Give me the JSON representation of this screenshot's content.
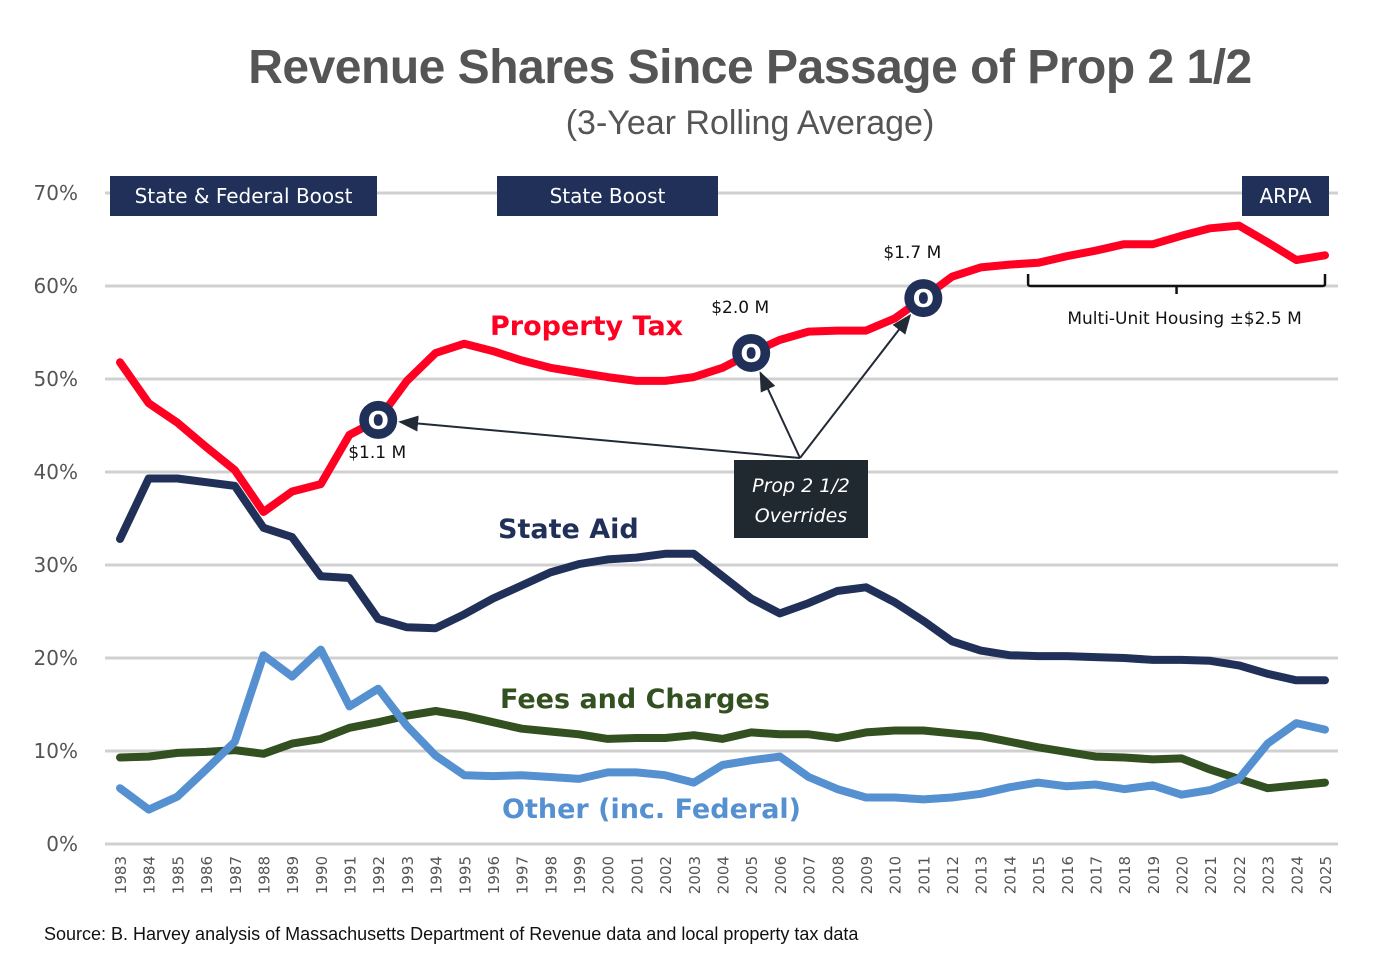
{
  "chart_data": {
    "type": "line",
    "title": "Revenue Shares Since Passage of Prop 2 1/2",
    "subtitle": "(3-Year Rolling Average)",
    "xlabel": "",
    "ylabel": "",
    "ylim": [
      0,
      70
    ],
    "yticks": [
      "0%",
      "10%",
      "20%",
      "30%",
      "40%",
      "50%",
      "60%",
      "70%"
    ],
    "grid": true,
    "x": [
      "1983",
      "1984",
      "1985",
      "1986",
      "1987",
      "1988",
      "1989",
      "1990",
      "1991",
      "1992",
      "1993",
      "1994",
      "1995",
      "1996",
      "1997",
      "1998",
      "1999",
      "2000",
      "2001",
      "2002",
      "2003",
      "2004",
      "2005",
      "2006",
      "2007",
      "2008",
      "2009",
      "2010",
      "2011",
      "2012",
      "2013",
      "2014",
      "2015",
      "2016",
      "2017",
      "2018",
      "2019",
      "2020",
      "2021",
      "2022",
      "2023",
      "2024",
      "2025"
    ],
    "series": [
      {
        "name": "Property Tax",
        "color": "#ff0022",
        "values": [
          51.8,
          47.4,
          45.3,
          42.7,
          40.2,
          35.7,
          37.9,
          38.7,
          44.0,
          45.6,
          49.8,
          52.8,
          53.8,
          53.0,
          52.0,
          51.2,
          50.7,
          50.2,
          49.8,
          49.8,
          50.2,
          51.2,
          52.8,
          54.2,
          55.1,
          55.2,
          55.2,
          56.5,
          58.7,
          61.0,
          62.0,
          62.3,
          62.5,
          63.2,
          63.8,
          64.5,
          64.5,
          65.4,
          66.2,
          66.5,
          64.7,
          62.8,
          63.3
        ]
      },
      {
        "name": "State Aid",
        "color": "#203058",
        "values": [
          32.8,
          39.3,
          39.3,
          38.9,
          38.5,
          34.0,
          33.0,
          28.8,
          28.6,
          24.2,
          23.3,
          23.2,
          24.7,
          26.4,
          27.8,
          29.2,
          30.1,
          30.6,
          30.8,
          31.2,
          31.2,
          28.8,
          26.4,
          24.8,
          25.9,
          27.2,
          27.6,
          26.0,
          24.0,
          21.8,
          20.8,
          20.3,
          20.2,
          20.2,
          20.1,
          20.0,
          19.8,
          19.8,
          19.7,
          19.2,
          18.3,
          17.6,
          17.6
        ]
      },
      {
        "name": "Fees and Charges",
        "color": "#335020",
        "values": [
          9.3,
          9.4,
          9.8,
          9.9,
          10.1,
          9.7,
          10.8,
          11.3,
          12.5,
          13.1,
          13.8,
          14.3,
          13.8,
          13.1,
          12.4,
          12.1,
          11.8,
          11.3,
          11.4,
          11.4,
          11.7,
          11.3,
          12.0,
          11.8,
          11.8,
          11.4,
          12.0,
          12.2,
          12.2,
          11.9,
          11.6,
          11.0,
          10.4,
          9.9,
          9.4,
          9.3,
          9.1,
          9.2,
          8.0,
          7.0,
          6.0,
          6.3,
          6.6
        ]
      },
      {
        "name": "Other (inc. Federal)",
        "color": "#5590d0",
        "values": [
          6.0,
          3.7,
          5.1,
          8.0,
          11.0,
          20.3,
          18.0,
          20.9,
          14.8,
          16.7,
          12.7,
          9.5,
          7.4,
          7.3,
          7.4,
          7.2,
          7.0,
          7.7,
          7.7,
          7.4,
          6.6,
          8.5,
          9.0,
          9.4,
          7.2,
          5.9,
          5.0,
          5.0,
          4.8,
          5.0,
          5.4,
          6.1,
          6.6,
          6.2,
          6.4,
          5.9,
          6.3,
          5.3,
          5.8,
          7.0,
          10.8,
          13.0,
          12.3
        ]
      }
    ],
    "series_labels": [
      "Property Tax",
      "State Aid",
      "Fees and Charges",
      "Other (inc. Federal)"
    ],
    "bands": [
      "State & Federal Boost",
      "State Boost",
      "ARPA"
    ],
    "overrides": [
      {
        "year": "1992",
        "label": "$1.1 M",
        "marker": "O"
      },
      {
        "year": "2005",
        "label": "$2.0 M",
        "marker": "O"
      },
      {
        "year": "2011",
        "label": "$1.7 M",
        "marker": "O"
      }
    ],
    "callout": [
      "Prop 2 1/2",
      "Overrides"
    ],
    "bracket_label": "Multi-Unit Housing ±$2.5 M",
    "bracket_range": [
      "2015",
      "2025"
    ],
    "legend": "inline-labels"
  },
  "source": "Source: B. Harvey analysis of Massachusetts Department of Revenue data and local property tax data"
}
